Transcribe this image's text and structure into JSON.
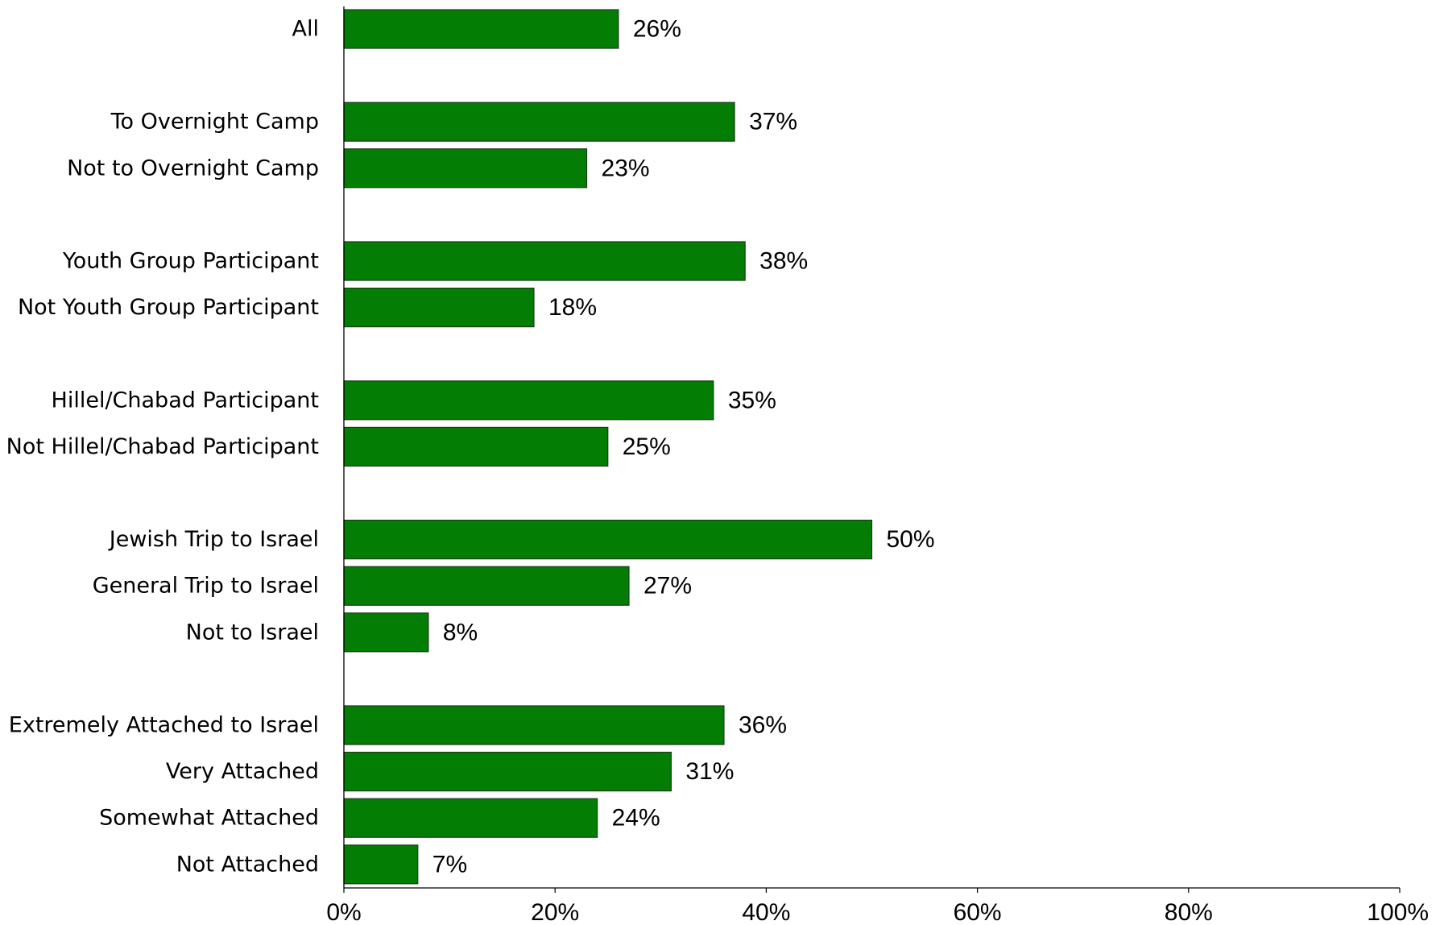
{
  "chart_data": {
    "type": "bar",
    "orientation": "horizontal",
    "categories": [
      "All",
      "To Overnight Camp",
      "Not to Overnight Camp",
      "Youth Group Participant",
      "Not Youth Group Participant",
      "Hillel/Chabad Participant",
      "Not Hillel/Chabad Participant",
      "Jewish Trip to Israel",
      "General Trip to Israel",
      "Not to Israel",
      "Extremely Attached to Israel",
      "Very Attached",
      "Somewhat Attached",
      "Not Attached"
    ],
    "values": [
      26,
      37,
      23,
      38,
      18,
      35,
      25,
      50,
      27,
      8,
      36,
      31,
      24,
      7
    ],
    "value_labels": [
      "26%",
      "37%",
      "23%",
      "38%",
      "18%",
      "35%",
      "25%",
      "50%",
      "27%",
      "8%",
      "36%",
      "31%",
      "24%",
      "7%"
    ],
    "groups": [
      [
        0
      ],
      [
        1,
        2
      ],
      [
        3,
        4
      ],
      [
        5,
        6
      ],
      [
        7,
        8,
        9
      ],
      [
        10,
        11,
        12,
        13
      ]
    ],
    "xlim": [
      0,
      100
    ],
    "x_ticks": [
      0,
      20,
      40,
      60,
      80,
      100
    ],
    "x_tick_labels": [
      "0%",
      "20%",
      "40%",
      "60%",
      "80%",
      "100%"
    ],
    "title": "",
    "xlabel": "",
    "ylabel": "",
    "grid": false,
    "bar_color": "#047d04",
    "bar_edge_color": "#1a3d1a"
  }
}
